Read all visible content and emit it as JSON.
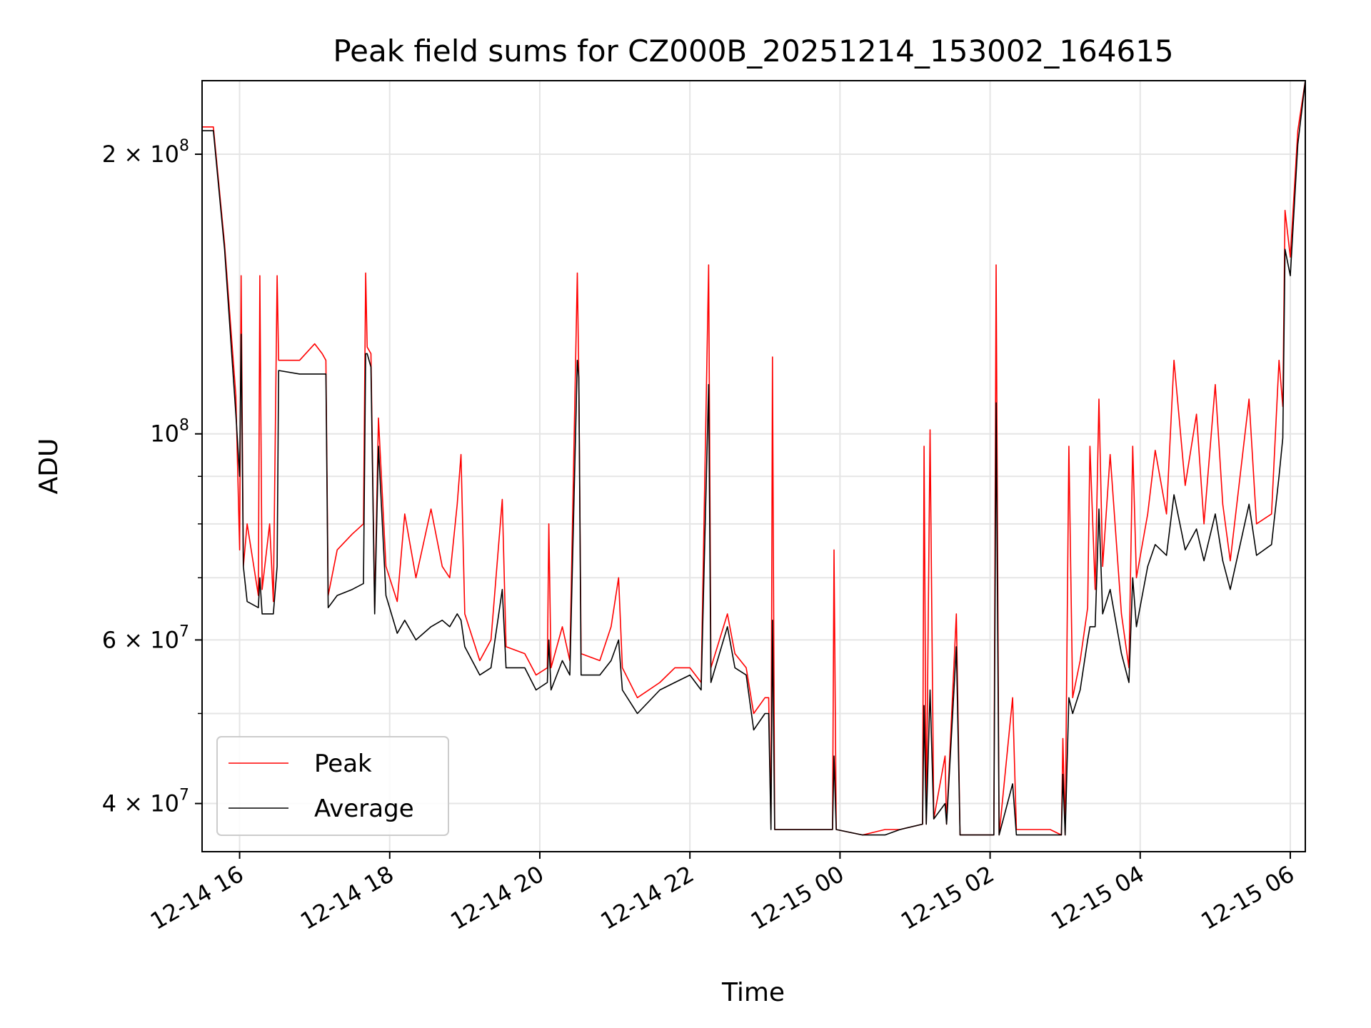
{
  "chart_data": {
    "type": "line",
    "title": "Peak field sums for CZ000B_20251214_153002_164615",
    "xlabel": "Time",
    "ylabel": "ADU",
    "yscale": "log",
    "ylim": [
      35500000,
      240000000
    ],
    "xlim_hours": [
      15.5,
      30.2
    ],
    "x_ticks": [
      {
        "label": "12-14 16",
        "hour": 16
      },
      {
        "label": "12-14 18",
        "hour": 18
      },
      {
        "label": "12-14 20",
        "hour": 20
      },
      {
        "label": "12-14 22",
        "hour": 22
      },
      {
        "label": "12-15 00",
        "hour": 24
      },
      {
        "label": "12-15 02",
        "hour": 26
      },
      {
        "label": "12-15 04",
        "hour": 28
      },
      {
        "label": "12-15 06",
        "hour": 30
      }
    ],
    "y_ticks": [
      {
        "base": "4 × 10",
        "exp": "7",
        "value": 40000000
      },
      {
        "base": "6 × 10",
        "exp": "7",
        "value": 60000000
      },
      {
        "base": "10",
        "exp": "8",
        "value": 100000000
      },
      {
        "base": "2 × 10",
        "exp": "8",
        "value": 200000000
      }
    ],
    "y_minor_values": [
      50000000,
      70000000,
      80000000,
      90000000
    ],
    "grid": true,
    "legend": "lower-left",
    "colors": {
      "peak": "#ff0000",
      "average": "#000000"
    },
    "series": [
      {
        "name": "Peak",
        "color": "#ff0000",
        "points": [
          [
            15.5,
            214000000
          ],
          [
            15.65,
            214000000
          ],
          [
            15.8,
            160000000
          ],
          [
            15.95,
            110000000
          ],
          [
            16.0,
            75000000
          ],
          [
            16.02,
            148000000
          ],
          [
            16.05,
            72000000
          ],
          [
            16.1,
            80000000
          ],
          [
            16.25,
            67000000
          ],
          [
            16.27,
            148000000
          ],
          [
            16.3,
            68000000
          ],
          [
            16.4,
            80000000
          ],
          [
            16.45,
            66000000
          ],
          [
            16.5,
            148000000
          ],
          [
            16.52,
            120000000
          ],
          [
            16.8,
            120000000
          ],
          [
            17.0,
            125000000
          ],
          [
            17.1,
            122000000
          ],
          [
            17.15,
            120000000
          ],
          [
            17.18,
            67000000
          ],
          [
            17.3,
            75000000
          ],
          [
            17.5,
            78000000
          ],
          [
            17.65,
            80000000
          ],
          [
            17.68,
            149000000
          ],
          [
            17.7,
            124000000
          ],
          [
            17.75,
            122000000
          ],
          [
            17.8,
            65000000
          ],
          [
            17.85,
            104000000
          ],
          [
            17.95,
            72000000
          ],
          [
            18.1,
            66000000
          ],
          [
            18.2,
            82000000
          ],
          [
            18.35,
            70000000
          ],
          [
            18.55,
            83000000
          ],
          [
            18.7,
            72000000
          ],
          [
            18.8,
            70000000
          ],
          [
            18.9,
            84000000
          ],
          [
            18.95,
            95000000
          ],
          [
            19.0,
            64000000
          ],
          [
            19.2,
            57000000
          ],
          [
            19.35,
            60000000
          ],
          [
            19.5,
            85000000
          ],
          [
            19.55,
            59000000
          ],
          [
            19.8,
            58000000
          ],
          [
            19.95,
            55000000
          ],
          [
            20.1,
            56000000
          ],
          [
            20.12,
            80000000
          ],
          [
            20.15,
            56000000
          ],
          [
            20.3,
            62000000
          ],
          [
            20.4,
            57000000
          ],
          [
            20.5,
            149000000
          ],
          [
            20.52,
            115000000
          ],
          [
            20.55,
            58000000
          ],
          [
            20.8,
            57000000
          ],
          [
            20.95,
            62000000
          ],
          [
            21.05,
            70000000
          ],
          [
            21.1,
            56000000
          ],
          [
            21.3,
            52000000
          ],
          [
            21.6,
            54000000
          ],
          [
            21.8,
            56000000
          ],
          [
            22.0,
            56000000
          ],
          [
            22.15,
            54000000
          ],
          [
            22.25,
            152000000
          ],
          [
            22.28,
            56000000
          ],
          [
            22.5,
            64000000
          ],
          [
            22.6,
            58000000
          ],
          [
            22.75,
            56000000
          ],
          [
            22.85,
            50000000
          ],
          [
            23.0,
            52000000
          ],
          [
            23.05,
            52000000
          ],
          [
            23.08,
            38000000
          ],
          [
            23.1,
            121000000
          ],
          [
            23.13,
            37500000
          ],
          [
            23.5,
            37500000
          ],
          [
            23.9,
            37500000
          ],
          [
            23.92,
            75000000
          ],
          [
            23.95,
            37500000
          ],
          [
            24.3,
            37000000
          ],
          [
            24.6,
            37500000
          ],
          [
            24.8,
            37500000
          ],
          [
            25.1,
            38000000
          ],
          [
            25.12,
            97000000
          ],
          [
            25.15,
            38000000
          ],
          [
            25.2,
            101000000
          ],
          [
            25.25,
            38500000
          ],
          [
            25.4,
            45000000
          ],
          [
            25.42,
            38000000
          ],
          [
            25.55,
            64000000
          ],
          [
            25.6,
            37000000
          ],
          [
            25.9,
            37000000
          ],
          [
            26.05,
            37000000
          ],
          [
            26.08,
            152000000
          ],
          [
            26.12,
            37000000
          ],
          [
            26.3,
            52000000
          ],
          [
            26.35,
            37500000
          ],
          [
            26.8,
            37500000
          ],
          [
            26.95,
            37000000
          ],
          [
            26.97,
            47000000
          ],
          [
            27.0,
            37000000
          ],
          [
            27.05,
            97000000
          ],
          [
            27.1,
            52000000
          ],
          [
            27.2,
            57000000
          ],
          [
            27.3,
            65000000
          ],
          [
            27.33,
            97000000
          ],
          [
            27.4,
            68000000
          ],
          [
            27.45,
            109000000
          ],
          [
            27.5,
            72000000
          ],
          [
            27.6,
            95000000
          ],
          [
            27.75,
            64000000
          ],
          [
            27.85,
            56000000
          ],
          [
            27.9,
            97000000
          ],
          [
            27.95,
            70000000
          ],
          [
            28.1,
            82000000
          ],
          [
            28.2,
            96000000
          ],
          [
            28.35,
            82000000
          ],
          [
            28.45,
            120000000
          ],
          [
            28.6,
            88000000
          ],
          [
            28.75,
            105000000
          ],
          [
            28.85,
            80000000
          ],
          [
            29.0,
            113000000
          ],
          [
            29.1,
            84000000
          ],
          [
            29.2,
            73000000
          ],
          [
            29.45,
            109000000
          ],
          [
            29.55,
            80000000
          ],
          [
            29.75,
            82000000
          ],
          [
            29.85,
            120000000
          ],
          [
            29.9,
            107000000
          ],
          [
            29.93,
            174000000
          ],
          [
            30.0,
            155000000
          ],
          [
            30.1,
            212000000
          ],
          [
            30.2,
            240000000
          ]
        ]
      },
      {
        "name": "Average",
        "color": "#000000",
        "points": [
          [
            15.5,
            212000000
          ],
          [
            15.65,
            212000000
          ],
          [
            15.8,
            158000000
          ],
          [
            15.95,
            105000000
          ],
          [
            16.0,
            90000000
          ],
          [
            16.02,
            128000000
          ],
          [
            16.05,
            72000000
          ],
          [
            16.1,
            66000000
          ],
          [
            16.25,
            65000000
          ],
          [
            16.27,
            70000000
          ],
          [
            16.3,
            64000000
          ],
          [
            16.4,
            64000000
          ],
          [
            16.45,
            64000000
          ],
          [
            16.5,
            72000000
          ],
          [
            16.52,
            117000000
          ],
          [
            16.8,
            116000000
          ],
          [
            17.0,
            116000000
          ],
          [
            17.1,
            116000000
          ],
          [
            17.15,
            116000000
          ],
          [
            17.18,
            65000000
          ],
          [
            17.3,
            67000000
          ],
          [
            17.5,
            68000000
          ],
          [
            17.65,
            69000000
          ],
          [
            17.68,
            122000000
          ],
          [
            17.7,
            122000000
          ],
          [
            17.75,
            118000000
          ],
          [
            17.8,
            64000000
          ],
          [
            17.85,
            97000000
          ],
          [
            17.95,
            67000000
          ],
          [
            18.1,
            61000000
          ],
          [
            18.2,
            63000000
          ],
          [
            18.35,
            60000000
          ],
          [
            18.55,
            62000000
          ],
          [
            18.7,
            63000000
          ],
          [
            18.8,
            62000000
          ],
          [
            18.9,
            64000000
          ],
          [
            18.95,
            63000000
          ],
          [
            19.0,
            59000000
          ],
          [
            19.2,
            55000000
          ],
          [
            19.35,
            56000000
          ],
          [
            19.5,
            68000000
          ],
          [
            19.55,
            56000000
          ],
          [
            19.8,
            56000000
          ],
          [
            19.95,
            53000000
          ],
          [
            20.1,
            54000000
          ],
          [
            20.12,
            60000000
          ],
          [
            20.15,
            53000000
          ],
          [
            20.3,
            57000000
          ],
          [
            20.4,
            55000000
          ],
          [
            20.5,
            120000000
          ],
          [
            20.52,
            115000000
          ],
          [
            20.55,
            55000000
          ],
          [
            20.8,
            55000000
          ],
          [
            20.95,
            57000000
          ],
          [
            21.05,
            60000000
          ],
          [
            21.1,
            53000000
          ],
          [
            21.3,
            50000000
          ],
          [
            21.6,
            53000000
          ],
          [
            21.8,
            54000000
          ],
          [
            22.0,
            55000000
          ],
          [
            22.15,
            53000000
          ],
          [
            22.25,
            113000000
          ],
          [
            22.28,
            54000000
          ],
          [
            22.5,
            62000000
          ],
          [
            22.6,
            56000000
          ],
          [
            22.75,
            55000000
          ],
          [
            22.85,
            48000000
          ],
          [
            23.0,
            50000000
          ],
          [
            23.05,
            50000000
          ],
          [
            23.08,
            37500000
          ],
          [
            23.1,
            63000000
          ],
          [
            23.13,
            37500000
          ],
          [
            23.5,
            37500000
          ],
          [
            23.9,
            37500000
          ],
          [
            23.92,
            45000000
          ],
          [
            23.95,
            37500000
          ],
          [
            24.3,
            37000000
          ],
          [
            24.6,
            37000000
          ],
          [
            24.8,
            37500000
          ],
          [
            25.1,
            38000000
          ],
          [
            25.12,
            51000000
          ],
          [
            25.15,
            38000000
          ],
          [
            25.2,
            53000000
          ],
          [
            25.25,
            38500000
          ],
          [
            25.4,
            40000000
          ],
          [
            25.42,
            38000000
          ],
          [
            25.55,
            59000000
          ],
          [
            25.6,
            37000000
          ],
          [
            25.9,
            37000000
          ],
          [
            26.05,
            37000000
          ],
          [
            26.08,
            108000000
          ],
          [
            26.12,
            37000000
          ],
          [
            26.3,
            42000000
          ],
          [
            26.35,
            37000000
          ],
          [
            26.8,
            37000000
          ],
          [
            26.95,
            37000000
          ],
          [
            26.97,
            43000000
          ],
          [
            27.0,
            37000000
          ],
          [
            27.05,
            52000000
          ],
          [
            27.1,
            50000000
          ],
          [
            27.2,
            53000000
          ],
          [
            27.3,
            60000000
          ],
          [
            27.33,
            62000000
          ],
          [
            27.4,
            62000000
          ],
          [
            27.45,
            83000000
          ],
          [
            27.5,
            64000000
          ],
          [
            27.6,
            68000000
          ],
          [
            27.75,
            58000000
          ],
          [
            27.85,
            54000000
          ],
          [
            27.9,
            70000000
          ],
          [
            27.95,
            62000000
          ],
          [
            28.1,
            72000000
          ],
          [
            28.2,
            76000000
          ],
          [
            28.35,
            74000000
          ],
          [
            28.45,
            86000000
          ],
          [
            28.6,
            75000000
          ],
          [
            28.75,
            79000000
          ],
          [
            28.85,
            73000000
          ],
          [
            29.0,
            82000000
          ],
          [
            29.1,
            73000000
          ],
          [
            29.2,
            68000000
          ],
          [
            29.45,
            84000000
          ],
          [
            29.55,
            74000000
          ],
          [
            29.75,
            76000000
          ],
          [
            29.85,
            90000000
          ],
          [
            29.9,
            99000000
          ],
          [
            29.93,
            158000000
          ],
          [
            30.0,
            148000000
          ],
          [
            30.1,
            205000000
          ],
          [
            30.2,
            240000000
          ]
        ]
      }
    ]
  }
}
